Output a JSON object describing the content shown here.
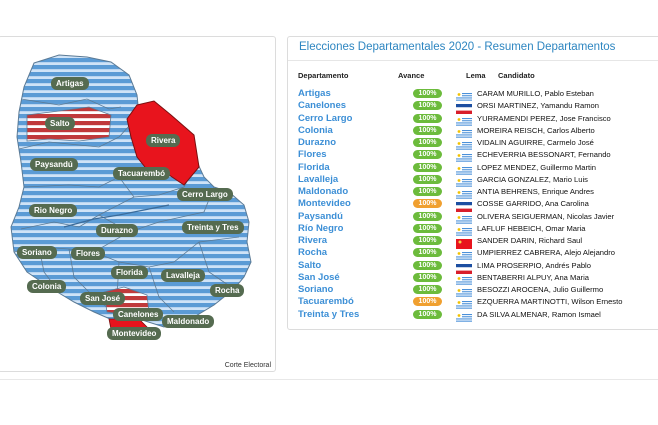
{
  "colors": {
    "map_blue": "#5b9bd5",
    "map_red": "#e8141d",
    "label_bg": "#556b50",
    "title_blue": "#2e86c1",
    "badge_green": "#6cbb3c",
    "badge_orange": "#f0a030"
  },
  "map": {
    "credit": "Corte Electoral",
    "labels": [
      "Artigas",
      "Salto",
      "Rivera",
      "Paysandú",
      "Tacuarembó",
      "Cerro Largo",
      "Rio Negro",
      "Durazno",
      "Treinta y Tres",
      "Soriano",
      "Flores",
      "Florida",
      "Lavalleja",
      "Colonia",
      "San José",
      "Rocha",
      "Canelones",
      "Maldonado",
      "Montevideo"
    ],
    "winners": [
      {
        "name": "Artigas",
        "party": "blue"
      },
      {
        "name": "Salto",
        "party": "red"
      },
      {
        "name": "Rivera",
        "party": "red"
      },
      {
        "name": "Paysandú",
        "party": "blue"
      },
      {
        "name": "Tacuarembó",
        "party": "blue"
      },
      {
        "name": "Cerro Largo",
        "party": "blue"
      },
      {
        "name": "Rio Negro",
        "party": "blue"
      },
      {
        "name": "Durazno",
        "party": "blue"
      },
      {
        "name": "Treinta y Tres",
        "party": "blue"
      },
      {
        "name": "Soriano",
        "party": "blue"
      },
      {
        "name": "Flores",
        "party": "blue"
      },
      {
        "name": "Florida",
        "party": "blue"
      },
      {
        "name": "Lavalleja",
        "party": "blue"
      },
      {
        "name": "Colonia",
        "party": "blue"
      },
      {
        "name": "San José",
        "party": "blue"
      },
      {
        "name": "Rocha",
        "party": "blue"
      },
      {
        "name": "Canelones",
        "party": "red"
      },
      {
        "name": "Maldonado",
        "party": "blue"
      },
      {
        "name": "Montevideo",
        "party": "red"
      }
    ]
  },
  "results": {
    "title": "Elecciones Departamentales 2020 - Resumen Departamentos",
    "headers": {
      "dept": "Departamento",
      "progress": "Avance",
      "lema": "Lema",
      "candidate": "Candidato"
    },
    "rows": [
      {
        "dept": "Artigas",
        "progress": "100%",
        "status": "green",
        "flag": "uruguay",
        "candidate": "CARAM MURILLO, Pablo Esteban"
      },
      {
        "dept": "Canelones",
        "progress": "100%",
        "status": "green",
        "flag": "frente",
        "candidate": "ORSI MARTINEZ, Yamandu Ramon"
      },
      {
        "dept": "Cerro Largo",
        "progress": "100%",
        "status": "green",
        "flag": "uruguay",
        "candidate": "YURRAMENDI PEREZ, Jose Francisco"
      },
      {
        "dept": "Colonia",
        "progress": "100%",
        "status": "green",
        "flag": "uruguay",
        "candidate": "MOREIRA REISCH, Carlos Alberto"
      },
      {
        "dept": "Durazno",
        "progress": "100%",
        "status": "green",
        "flag": "uruguay",
        "candidate": "VIDALIN AGUIRRE, Carmelo José"
      },
      {
        "dept": "Flores",
        "progress": "100%",
        "status": "green",
        "flag": "uruguay",
        "candidate": "ECHEVERRIA BESSONART, Fernando"
      },
      {
        "dept": "Florida",
        "progress": "100%",
        "status": "green",
        "flag": "uruguay",
        "candidate": "LOPEZ MENDEZ, Guillermo Martin"
      },
      {
        "dept": "Lavalleja",
        "progress": "100%",
        "status": "green",
        "flag": "uruguay",
        "candidate": "GARCIA GONZALEZ, Mario Luis"
      },
      {
        "dept": "Maldonado",
        "progress": "100%",
        "status": "green",
        "flag": "uruguay",
        "candidate": "ANTIA BEHRENS, Enrique Andres"
      },
      {
        "dept": "Montevideo",
        "progress": "100%",
        "status": "orange",
        "flag": "frente",
        "candidate": "COSSE GARRIDO, Ana Carolina"
      },
      {
        "dept": "Paysandú",
        "progress": "100%",
        "status": "green",
        "flag": "uruguay",
        "candidate": "OLIVERA SEIGUERMAN, Nicolas Javier"
      },
      {
        "dept": "Río Negro",
        "progress": "100%",
        "status": "green",
        "flag": "uruguay",
        "candidate": "LAFLUF HEBEICH, Omar Maria"
      },
      {
        "dept": "Rivera",
        "progress": "100%",
        "status": "green",
        "flag": "colorado",
        "candidate": "SANDER DARIN, Richard Saul"
      },
      {
        "dept": "Rocha",
        "progress": "100%",
        "status": "green",
        "flag": "uruguay",
        "candidate": "UMPIERREZ CABRERA, Alejo Alejandro"
      },
      {
        "dept": "Salto",
        "progress": "100%",
        "status": "green",
        "flag": "frente",
        "candidate": "LIMA PROSERPIO, Andrés Pablo"
      },
      {
        "dept": "San José",
        "progress": "100%",
        "status": "green",
        "flag": "uruguay",
        "candidate": "BENTABERRI ALPUY, Ana Maria"
      },
      {
        "dept": "Soriano",
        "progress": "100%",
        "status": "green",
        "flag": "uruguay",
        "candidate": "BESOZZI AROCENA, Julio Guillermo"
      },
      {
        "dept": "Tacuarembó",
        "progress": "100%",
        "status": "orange",
        "flag": "uruguay",
        "candidate": "EZQUERRA MARTINOTTI, Wilson Ernesto"
      },
      {
        "dept": "Treinta y Tres",
        "progress": "100%",
        "status": "green",
        "flag": "uruguay",
        "candidate": "DA SILVA ALMENAR, Ramon Ismael"
      }
    ]
  }
}
